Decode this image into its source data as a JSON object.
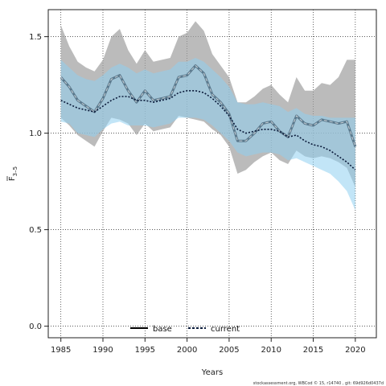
{
  "chart_data": {
    "type": "line",
    "title": "",
    "xlabel": "Years",
    "ylabel_main": "F",
    "ylabel_sub": "3–5",
    "xlim": [
      1983.5,
      2022.5
    ],
    "ylim": [
      -0.06,
      1.64
    ],
    "x_ticks": [
      1985,
      1990,
      1995,
      2000,
      2005,
      2010,
      2015,
      2020
    ],
    "y_ticks": [
      0.0,
      0.5,
      1.0,
      1.5
    ],
    "y_tick_labels": [
      "0.0",
      "0.5",
      "1.0",
      "1.5"
    ],
    "grid": "dotted",
    "legend_position": "bottom-center",
    "x": [
      1985,
      1986,
      1987,
      1988,
      1989,
      1990,
      1991,
      1992,
      1993,
      1994,
      1995,
      1996,
      1997,
      1998,
      1999,
      2000,
      2001,
      2002,
      2003,
      2004,
      2005,
      2006,
      2007,
      2008,
      2009,
      2010,
      2011,
      2012,
      2013,
      2014,
      2015,
      2016,
      2017,
      2018,
      2019,
      2020
    ],
    "series": [
      {
        "name": "base",
        "color": "#4d6b80",
        "line_style": "dashed-on-solid",
        "values": [
          1.29,
          1.24,
          1.17,
          1.14,
          1.11,
          1.18,
          1.28,
          1.3,
          1.22,
          1.16,
          1.22,
          1.17,
          1.18,
          1.19,
          1.29,
          1.3,
          1.35,
          1.31,
          1.2,
          1.16,
          1.1,
          0.96,
          0.96,
          1.0,
          1.05,
          1.06,
          1.01,
          0.98,
          1.09,
          1.05,
          1.04,
          1.07,
          1.06,
          1.05,
          1.06,
          0.93
        ],
        "lower": [
          1.08,
          1.04,
          0.99,
          0.96,
          0.93,
          1.01,
          1.08,
          1.07,
          1.05,
          0.99,
          1.05,
          1.01,
          1.02,
          1.03,
          1.09,
          1.08,
          1.07,
          1.06,
          1.02,
          0.99,
          0.93,
          0.79,
          0.81,
          0.85,
          0.88,
          0.9,
          0.86,
          0.84,
          0.91,
          0.88,
          0.87,
          0.88,
          0.87,
          0.85,
          0.82,
          0.72
        ],
        "upper": [
          1.56,
          1.45,
          1.37,
          1.34,
          1.32,
          1.38,
          1.5,
          1.54,
          1.43,
          1.36,
          1.43,
          1.37,
          1.38,
          1.39,
          1.5,
          1.52,
          1.58,
          1.53,
          1.41,
          1.35,
          1.29,
          1.16,
          1.16,
          1.19,
          1.23,
          1.25,
          1.2,
          1.16,
          1.29,
          1.22,
          1.22,
          1.26,
          1.25,
          1.29,
          1.38,
          1.38
        ],
        "band_color": "#9e9e9e"
      },
      {
        "name": "current",
        "color": "#0a1a3a",
        "line_style": "dotted",
        "values": [
          1.17,
          1.15,
          1.13,
          1.12,
          1.11,
          1.14,
          1.17,
          1.19,
          1.19,
          1.17,
          1.17,
          1.16,
          1.17,
          1.18,
          1.21,
          1.22,
          1.22,
          1.21,
          1.18,
          1.14,
          1.09,
          1.02,
          1.0,
          1.01,
          1.02,
          1.02,
          1.01,
          0.98,
          0.99,
          0.96,
          0.94,
          0.93,
          0.91,
          0.88,
          0.85,
          0.81
        ],
        "lower": [
          1.06,
          1.05,
          1.0,
          0.99,
          0.98,
          1.02,
          1.05,
          1.06,
          1.04,
          1.04,
          1.04,
          1.03,
          1.04,
          1.05,
          1.08,
          1.08,
          1.08,
          1.07,
          1.04,
          1.0,
          0.96,
          0.9,
          0.88,
          0.89,
          0.9,
          0.9,
          0.89,
          0.86,
          0.87,
          0.85,
          0.83,
          0.81,
          0.79,
          0.75,
          0.7,
          0.6
        ],
        "upper": [
          1.38,
          1.34,
          1.3,
          1.28,
          1.27,
          1.3,
          1.34,
          1.36,
          1.34,
          1.31,
          1.33,
          1.31,
          1.32,
          1.33,
          1.37,
          1.37,
          1.39,
          1.37,
          1.33,
          1.29,
          1.24,
          1.16,
          1.15,
          1.15,
          1.16,
          1.15,
          1.14,
          1.11,
          1.13,
          1.1,
          1.09,
          1.09,
          1.08,
          1.08,
          1.08,
          1.08
        ],
        "band_color": "#8fd0f0"
      }
    ]
  },
  "footer": "stockassessment.org,  WBCod  © 15,  r14740 ,  git:  69d926d0437d"
}
